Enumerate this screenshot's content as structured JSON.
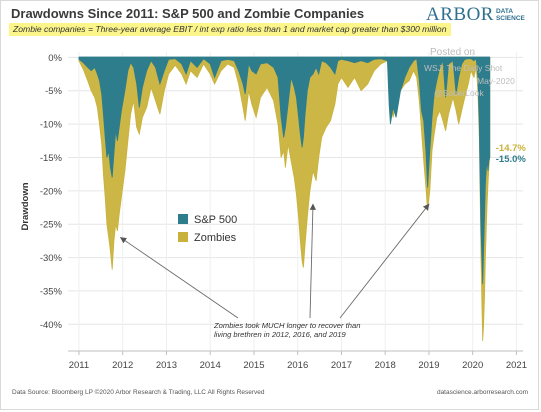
{
  "header": {
    "title": "Drawdowns Since 2011: S&P 500 and Zombie Companies",
    "subtitle": "Zombie companies = Three-year average EBIT / int exp ratio less than 1 and market cap greater than $300 million",
    "logo_main": "ARBOR",
    "logo_sub_1": "DATA",
    "logo_sub_2": "SCIENCE",
    "highlight_color": "#fbf58a"
  },
  "watermark": {
    "line1": "Posted on",
    "line2": "WSJ: The Daily Shot",
    "line3": "May-2020",
    "line4": "@SoberLook"
  },
  "footer": {
    "source": "Data Source: Bloomberg LP  ©2020 Arbor Research & Trading, LLC  All Rights Reserved",
    "site": "datascience.arborresearch.com"
  },
  "chart_data": {
    "type": "area",
    "title": "Drawdowns Since 2011: S&P 500 and Zombie Companies",
    "xlabel": "",
    "ylabel": "Drawdown",
    "xlim": [
      2010.75,
      2021.15
    ],
    "ylim": [
      -44,
      0.8
    ],
    "x_ticks": [
      "2011",
      "2012",
      "2013",
      "2014",
      "2015",
      "2016",
      "2017",
      "2018",
      "2019",
      "2020",
      "2021"
    ],
    "y_ticks": [
      "0%",
      "-5%",
      "-10%",
      "-15%",
      "-20%",
      "-25%",
      "-30%",
      "-35%",
      "-40%"
    ],
    "y_tick_values": [
      0,
      -5,
      -10,
      -15,
      -20,
      -25,
      -30,
      -35,
      -40
    ],
    "grid": true,
    "legend_placement": "center-left",
    "end_labels": [
      {
        "text": "-14.7%",
        "value": -14.7,
        "series": "Zombies"
      },
      {
        "text": "-15.0%",
        "value": -15.0,
        "series": "S&P 500"
      }
    ],
    "series": [
      {
        "name": "Zombies",
        "color": "#c9b23b",
        "points": [
          [
            2011.0,
            -0.5
          ],
          [
            2011.1,
            -1.8
          ],
          [
            2011.2,
            -3.5
          ],
          [
            2011.28,
            -5.0
          ],
          [
            2011.36,
            -6.0
          ],
          [
            2011.42,
            -7.5
          ],
          [
            2011.47,
            -10.0
          ],
          [
            2011.52,
            -13.0
          ],
          [
            2011.56,
            -17.5
          ],
          [
            2011.6,
            -21.0
          ],
          [
            2011.64,
            -25.0
          ],
          [
            2011.68,
            -27.0
          ],
          [
            2011.72,
            -29.0
          ],
          [
            2011.76,
            -31.8
          ],
          [
            2011.8,
            -27.5
          ],
          [
            2011.84,
            -25.0
          ],
          [
            2011.88,
            -26.0
          ],
          [
            2011.92,
            -23.5
          ],
          [
            2011.97,
            -21.0
          ],
          [
            2012.05,
            -17.0
          ],
          [
            2012.12,
            -12.5
          ],
          [
            2012.18,
            -8.5
          ],
          [
            2012.25,
            -6.5
          ],
          [
            2012.32,
            -10.5
          ],
          [
            2012.38,
            -11.5
          ],
          [
            2012.45,
            -9.0
          ],
          [
            2012.55,
            -7.5
          ],
          [
            2012.65,
            -4.5
          ],
          [
            2012.75,
            -6.5
          ],
          [
            2012.85,
            -8.5
          ],
          [
            2012.95,
            -5.0
          ],
          [
            2013.05,
            -2.5
          ],
          [
            2013.2,
            -1.2
          ],
          [
            2013.35,
            -2.5
          ],
          [
            2013.45,
            -4.0
          ],
          [
            2013.55,
            -2.0
          ],
          [
            2013.7,
            -3.0
          ],
          [
            2013.85,
            -1.0
          ],
          [
            2014.0,
            -2.5
          ],
          [
            2014.1,
            -4.0
          ],
          [
            2014.25,
            -2.0
          ],
          [
            2014.4,
            -1.0
          ],
          [
            2014.55,
            -1.5
          ],
          [
            2014.65,
            -4.0
          ],
          [
            2014.75,
            -7.5
          ],
          [
            2014.8,
            -9.5
          ],
          [
            2014.88,
            -5.0
          ],
          [
            2014.95,
            -7.0
          ],
          [
            2015.05,
            -9.0
          ],
          [
            2015.15,
            -6.0
          ],
          [
            2015.3,
            -4.5
          ],
          [
            2015.45,
            -6.5
          ],
          [
            2015.55,
            -10.0
          ],
          [
            2015.62,
            -15.0
          ],
          [
            2015.68,
            -14.0
          ],
          [
            2015.72,
            -16.5
          ],
          [
            2015.78,
            -13.0
          ],
          [
            2015.85,
            -15.5
          ],
          [
            2015.92,
            -18.0
          ],
          [
            2015.97,
            -20.5
          ],
          [
            2016.02,
            -24.0
          ],
          [
            2016.06,
            -27.5
          ],
          [
            2016.1,
            -30.5
          ],
          [
            2016.13,
            -31.5
          ],
          [
            2016.17,
            -28.0
          ],
          [
            2016.22,
            -24.0
          ],
          [
            2016.28,
            -20.0
          ],
          [
            2016.35,
            -17.0
          ],
          [
            2016.42,
            -18.5
          ],
          [
            2016.48,
            -15.0
          ],
          [
            2016.55,
            -12.0
          ],
          [
            2016.65,
            -10.5
          ],
          [
            2016.75,
            -9.5
          ],
          [
            2016.85,
            -7.0
          ],
          [
            2016.92,
            -4.0
          ],
          [
            2017.0,
            -3.0
          ],
          [
            2017.15,
            -4.5
          ],
          [
            2017.3,
            -3.0
          ],
          [
            2017.45,
            -5.0
          ],
          [
            2017.6,
            -4.0
          ],
          [
            2017.75,
            -2.0
          ],
          [
            2017.9,
            -1.0
          ],
          [
            2018.05,
            -0.5
          ],
          [
            2018.12,
            -5.5
          ],
          [
            2018.18,
            -9.0
          ],
          [
            2018.25,
            -7.0
          ],
          [
            2018.35,
            -5.0
          ],
          [
            2018.45,
            -4.0
          ],
          [
            2018.55,
            -3.5
          ],
          [
            2018.65,
            -2.0
          ],
          [
            2018.72,
            -3.0
          ],
          [
            2018.78,
            -6.5
          ],
          [
            2018.83,
            -11.0
          ],
          [
            2018.88,
            -15.5
          ],
          [
            2018.93,
            -19.5
          ],
          [
            2018.97,
            -23.0
          ],
          [
            2019.02,
            -20.0
          ],
          [
            2019.07,
            -14.0
          ],
          [
            2019.12,
            -11.5
          ],
          [
            2019.18,
            -9.0
          ],
          [
            2019.25,
            -8.0
          ],
          [
            2019.32,
            -9.5
          ],
          [
            2019.38,
            -11.0
          ],
          [
            2019.45,
            -8.5
          ],
          [
            2019.55,
            -6.0
          ],
          [
            2019.62,
            -8.0
          ],
          [
            2019.68,
            -10.0
          ],
          [
            2019.75,
            -8.0
          ],
          [
            2019.82,
            -6.0
          ],
          [
            2019.9,
            -4.0
          ],
          [
            2019.96,
            -2.0
          ],
          [
            2020.03,
            -3.0
          ],
          [
            2020.08,
            -1.5
          ],
          [
            2020.12,
            -5.0
          ],
          [
            2020.15,
            -12.0
          ],
          [
            2020.17,
            -20.0
          ],
          [
            2020.19,
            -30.0
          ],
          [
            2020.21,
            -37.0
          ],
          [
            2020.23,
            -42.5
          ],
          [
            2020.25,
            -40.0
          ],
          [
            2020.27,
            -36.0
          ],
          [
            2020.29,
            -30.0
          ],
          [
            2020.31,
            -26.0
          ],
          [
            2020.33,
            -22.0
          ],
          [
            2020.35,
            -19.0
          ],
          [
            2020.37,
            -16.5
          ],
          [
            2020.39,
            -14.7
          ]
        ]
      },
      {
        "name": "S&P 500",
        "color": "#2e7d8c",
        "points": [
          [
            2011.0,
            -0.3
          ],
          [
            2011.1,
            -0.8
          ],
          [
            2011.2,
            -1.5
          ],
          [
            2011.28,
            -2.0
          ],
          [
            2011.36,
            -1.5
          ],
          [
            2011.42,
            -2.5
          ],
          [
            2011.47,
            -3.5
          ],
          [
            2011.52,
            -5.5
          ],
          [
            2011.56,
            -8.5
          ],
          [
            2011.6,
            -12.0
          ],
          [
            2011.64,
            -15.0
          ],
          [
            2011.68,
            -14.0
          ],
          [
            2011.72,
            -16.5
          ],
          [
            2011.76,
            -18.0
          ],
          [
            2011.8,
            -14.5
          ],
          [
            2011.84,
            -11.0
          ],
          [
            2011.88,
            -12.5
          ],
          [
            2011.92,
            -10.5
          ],
          [
            2011.97,
            -8.0
          ],
          [
            2012.05,
            -5.0
          ],
          [
            2012.12,
            -2.0
          ],
          [
            2012.18,
            -0.8
          ],
          [
            2012.25,
            -1.5
          ],
          [
            2012.32,
            -4.0
          ],
          [
            2012.38,
            -7.5
          ],
          [
            2012.45,
            -4.5
          ],
          [
            2012.55,
            -2.0
          ],
          [
            2012.65,
            -0.5
          ],
          [
            2012.75,
            -1.5
          ],
          [
            2012.85,
            -4.0
          ],
          [
            2012.95,
            -2.0
          ],
          [
            2013.05,
            -0.3
          ],
          [
            2013.2,
            -0.2
          ],
          [
            2013.35,
            -1.0
          ],
          [
            2013.45,
            -2.5
          ],
          [
            2013.55,
            -0.5
          ],
          [
            2013.7,
            -1.5
          ],
          [
            2013.85,
            -0.2
          ],
          [
            2014.0,
            -1.0
          ],
          [
            2014.1,
            -3.0
          ],
          [
            2014.25,
            -0.5
          ],
          [
            2014.4,
            -0.3
          ],
          [
            2014.55,
            -0.5
          ],
          [
            2014.65,
            -2.0
          ],
          [
            2014.75,
            -4.0
          ],
          [
            2014.8,
            -5.5
          ],
          [
            2014.88,
            -1.0
          ],
          [
            2014.95,
            -2.0
          ],
          [
            2015.05,
            -2.5
          ],
          [
            2015.15,
            -1.0
          ],
          [
            2015.3,
            -0.8
          ],
          [
            2015.45,
            -1.5
          ],
          [
            2015.55,
            -3.0
          ],
          [
            2015.62,
            -9.0
          ],
          [
            2015.68,
            -12.0
          ],
          [
            2015.72,
            -10.5
          ],
          [
            2015.78,
            -7.0
          ],
          [
            2015.85,
            -3.0
          ],
          [
            2015.92,
            -4.5
          ],
          [
            2015.97,
            -6.0
          ],
          [
            2016.02,
            -9.0
          ],
          [
            2016.06,
            -11.5
          ],
          [
            2016.1,
            -13.5
          ],
          [
            2016.13,
            -12.0
          ],
          [
            2016.17,
            -8.5
          ],
          [
            2016.22,
            -5.0
          ],
          [
            2016.28,
            -3.0
          ],
          [
            2016.35,
            -2.5
          ],
          [
            2016.42,
            -1.5
          ],
          [
            2016.48,
            -2.5
          ],
          [
            2016.55,
            -0.5
          ],
          [
            2016.65,
            -0.8
          ],
          [
            2016.75,
            -1.5
          ],
          [
            2016.85,
            -2.5
          ],
          [
            2016.92,
            -0.5
          ],
          [
            2017.0,
            -0.3
          ],
          [
            2017.15,
            -0.5
          ],
          [
            2017.3,
            -0.8
          ],
          [
            2017.45,
            -0.5
          ],
          [
            2017.6,
            -0.8
          ],
          [
            2017.75,
            -0.3
          ],
          [
            2017.9,
            -0.2
          ],
          [
            2018.05,
            -0.5
          ],
          [
            2018.09,
            -7.0
          ],
          [
            2018.12,
            -10.0
          ],
          [
            2018.18,
            -7.5
          ],
          [
            2018.25,
            -9.0
          ],
          [
            2018.35,
            -5.0
          ],
          [
            2018.45,
            -3.0
          ],
          [
            2018.55,
            -1.5
          ],
          [
            2018.65,
            -0.5
          ],
          [
            2018.72,
            -0.2
          ],
          [
            2018.78,
            -3.5
          ],
          [
            2018.83,
            -8.0
          ],
          [
            2018.88,
            -9.5
          ],
          [
            2018.93,
            -14.0
          ],
          [
            2018.97,
            -19.5
          ],
          [
            2019.02,
            -14.0
          ],
          [
            2019.07,
            -9.0
          ],
          [
            2019.12,
            -5.5
          ],
          [
            2019.18,
            -3.5
          ],
          [
            2019.25,
            -1.5
          ],
          [
            2019.32,
            -0.5
          ],
          [
            2019.38,
            -6.0
          ],
          [
            2019.45,
            -1.0
          ],
          [
            2019.55,
            -0.5
          ],
          [
            2019.62,
            -5.5
          ],
          [
            2019.68,
            -3.0
          ],
          [
            2019.75,
            -1.0
          ],
          [
            2019.82,
            -0.3
          ],
          [
            2019.9,
            -0.2
          ],
          [
            2019.96,
            -0.2
          ],
          [
            2020.03,
            -0.5
          ],
          [
            2020.08,
            -0.2
          ],
          [
            2020.12,
            -3.0
          ],
          [
            2020.15,
            -10.0
          ],
          [
            2020.17,
            -18.0
          ],
          [
            2020.19,
            -26.0
          ],
          [
            2020.21,
            -30.0
          ],
          [
            2020.23,
            -34.0
          ],
          [
            2020.25,
            -29.0
          ],
          [
            2020.27,
            -24.0
          ],
          [
            2020.29,
            -19.0
          ],
          [
            2020.31,
            -17.0
          ],
          [
            2020.33,
            -15.5
          ],
          [
            2020.35,
            -17.0
          ],
          [
            2020.37,
            -15.5
          ],
          [
            2020.39,
            -15.0
          ]
        ]
      }
    ],
    "annotation": {
      "line1": "Zombies took MUCH longer to recover than",
      "line2": "living brethren in 2012, 2016, and 2019",
      "targets": [
        {
          "x": 2011.95,
          "y": -27.0
        },
        {
          "x": 2016.35,
          "y": -22.0
        },
        {
          "x": 2019.0,
          "y": -22.0
        }
      ]
    }
  }
}
